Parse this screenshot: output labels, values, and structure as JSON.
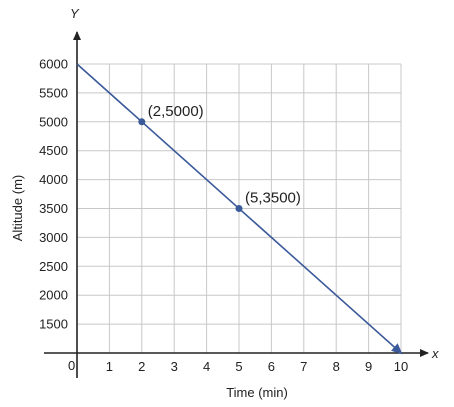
{
  "chart_data": {
    "type": "line",
    "xlabel": "Time (min)",
    "ylabel": "Altitude (m)",
    "x_axis_letter": "x",
    "y_axis_letter": "Y",
    "origin_label": "0",
    "xlim": [
      0,
      10
    ],
    "ylim": [
      1000,
      6000
    ],
    "grid": true,
    "x_ticks": [
      1,
      2,
      3,
      4,
      5,
      6,
      7,
      8,
      9,
      10
    ],
    "y_ticks": [
      1500,
      2000,
      2500,
      3000,
      3500,
      4000,
      4500,
      5000,
      5500,
      6000
    ],
    "series": [
      {
        "x": [
          0,
          10
        ],
        "y": [
          6000,
          1000
        ],
        "color": "#3b5a9a",
        "arrow_end": true
      }
    ],
    "points": [
      {
        "x": 2,
        "y": 5000,
        "label": "(2,5000)"
      },
      {
        "x": 5,
        "y": 3500,
        "label": "(5,3500)"
      }
    ]
  }
}
